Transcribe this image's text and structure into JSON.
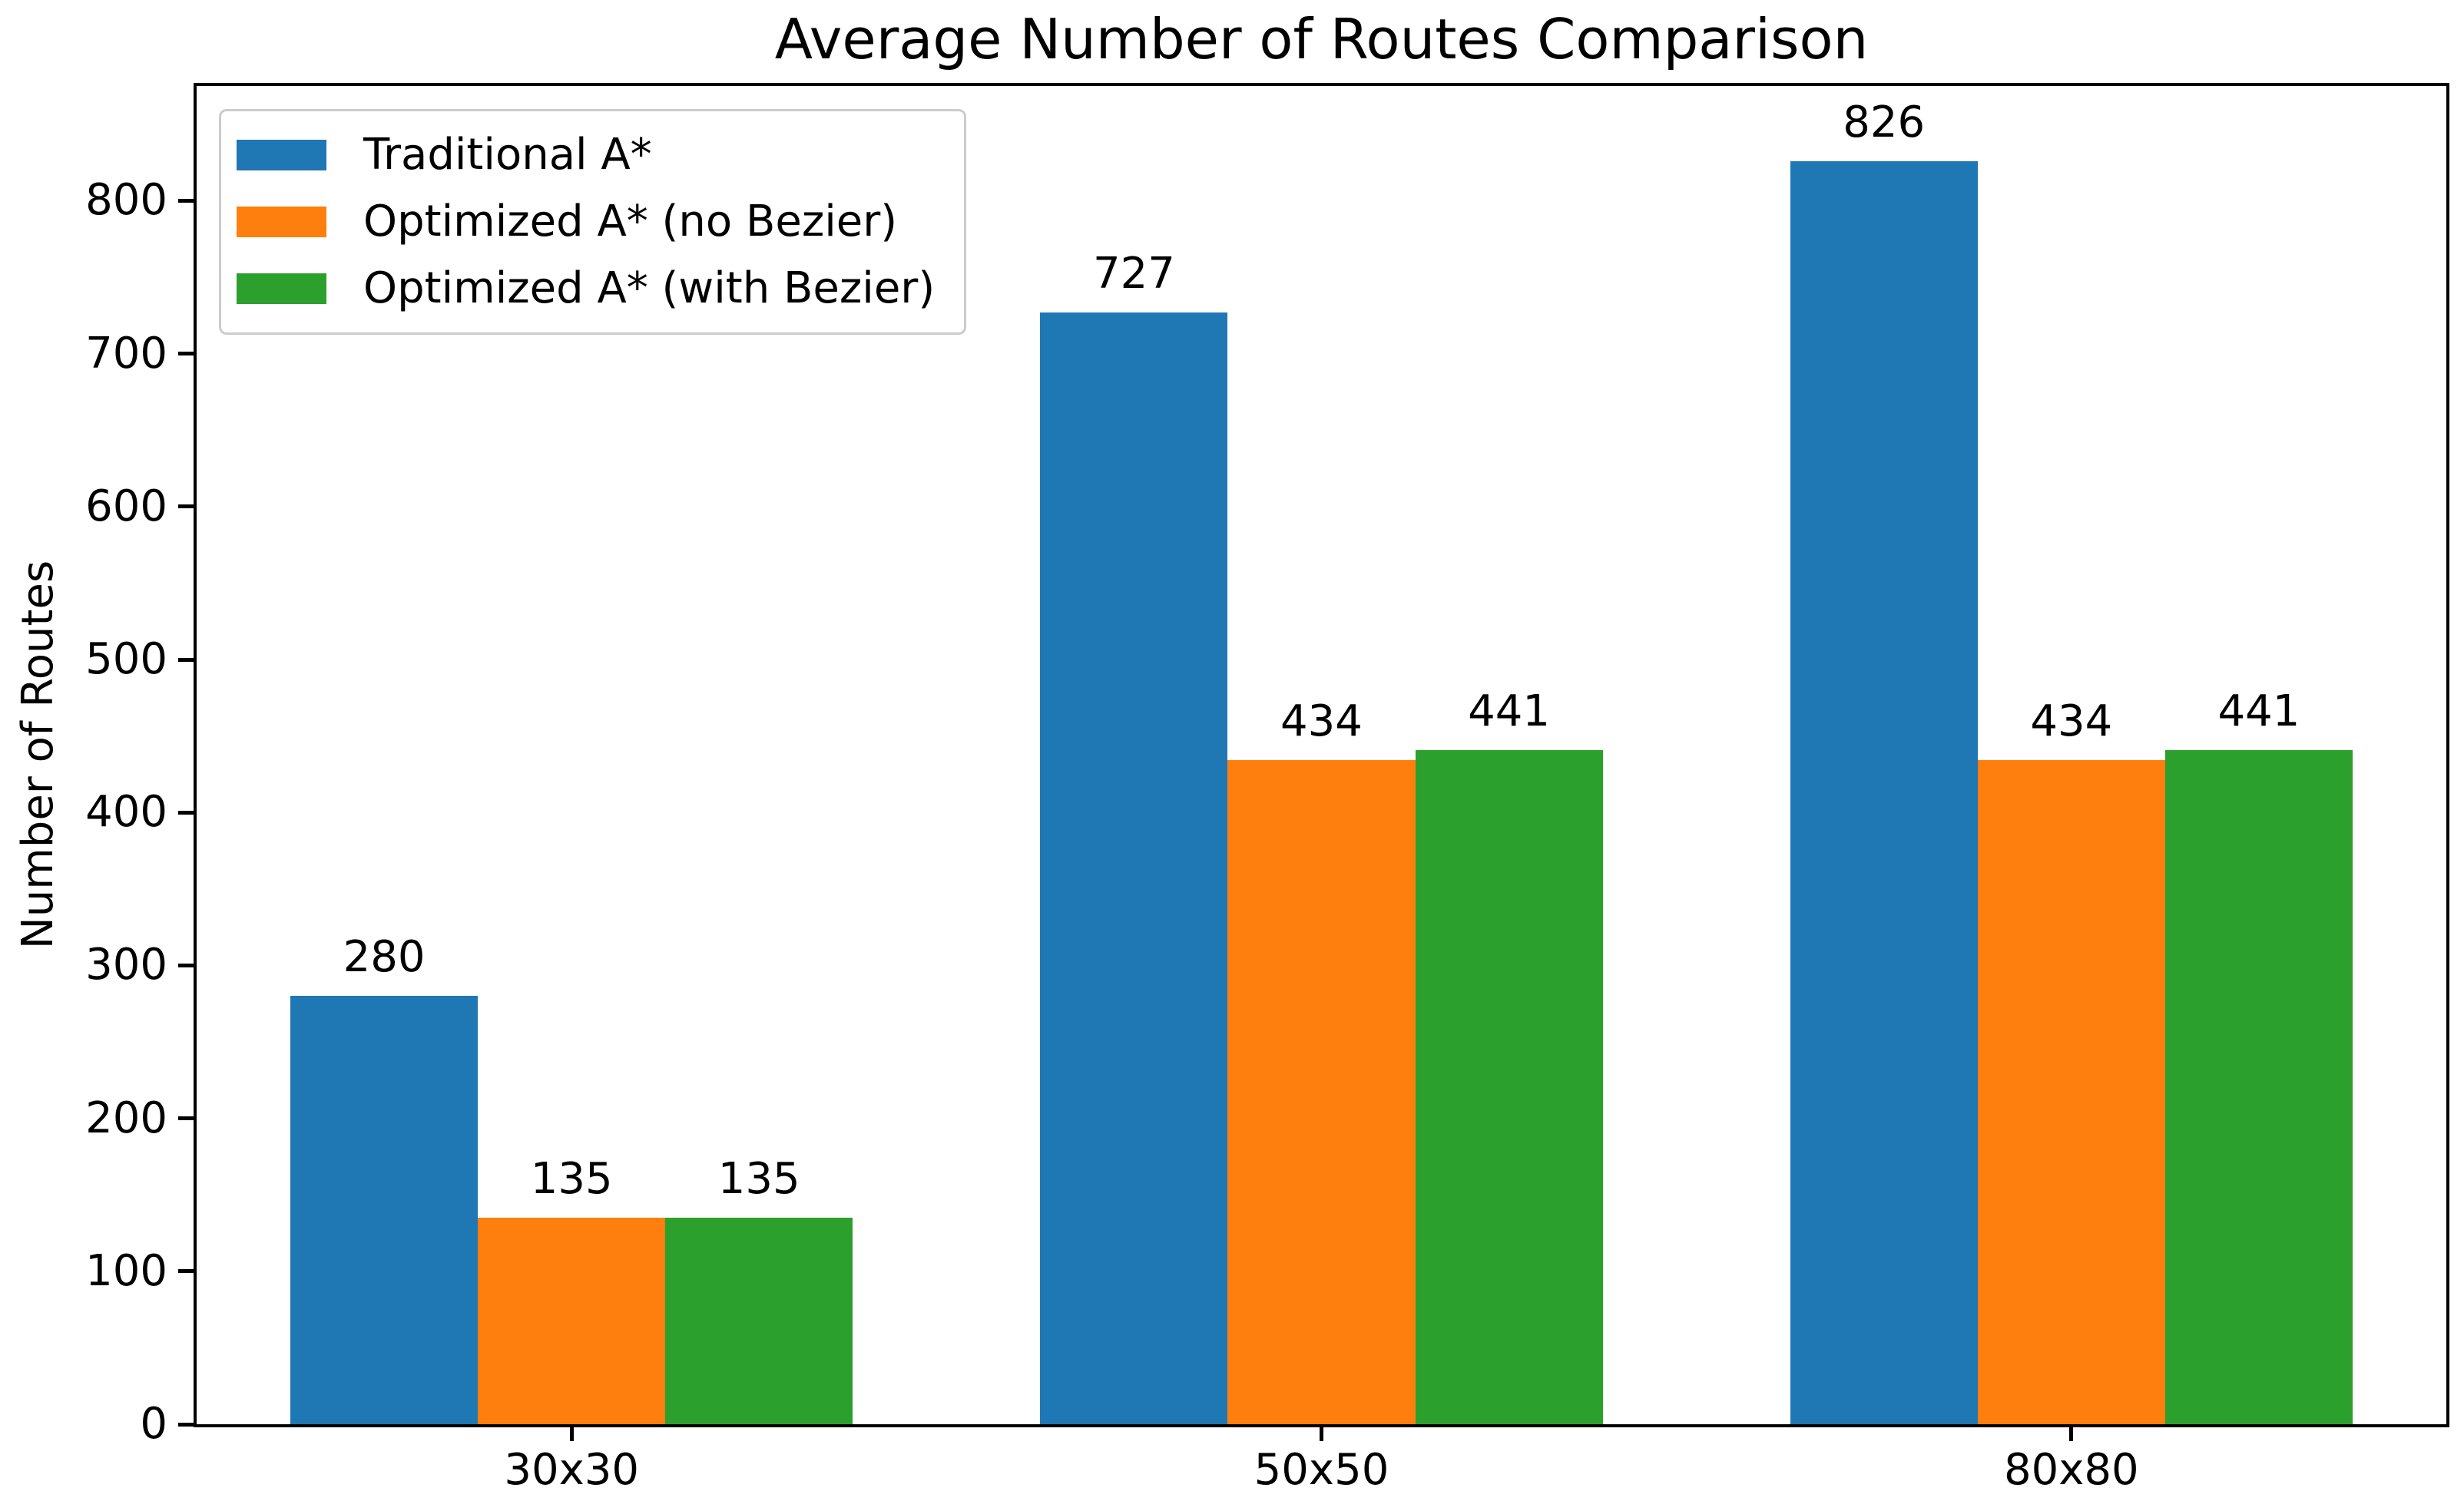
{
  "chart_data": {
    "type": "bar",
    "title": "Average Number of Routes Comparison",
    "xlabel": "",
    "ylabel": "Number of Routes",
    "categories": [
      "30x30",
      "50x50",
      "80x80"
    ],
    "series": [
      {
        "name": "Traditional A*",
        "color": "#1f77b4",
        "values": [
          280,
          727,
          826
        ]
      },
      {
        "name": "Optimized A* (no Bezier)",
        "color": "#ff7f0e",
        "values": [
          135,
          434,
          434
        ]
      },
      {
        "name": "Optimized A* (with Bezier)",
        "color": "#2ca02c",
        "values": [
          135,
          441,
          441
        ]
      }
    ],
    "bar_labels": true,
    "ylim": [
      0,
      875
    ],
    "yticks": [
      0,
      100,
      200,
      300,
      400,
      500,
      600,
      700,
      800
    ],
    "grid": false,
    "legend_position": "upper left",
    "axis_color": "#000000",
    "background_color": "#ffffff"
  }
}
